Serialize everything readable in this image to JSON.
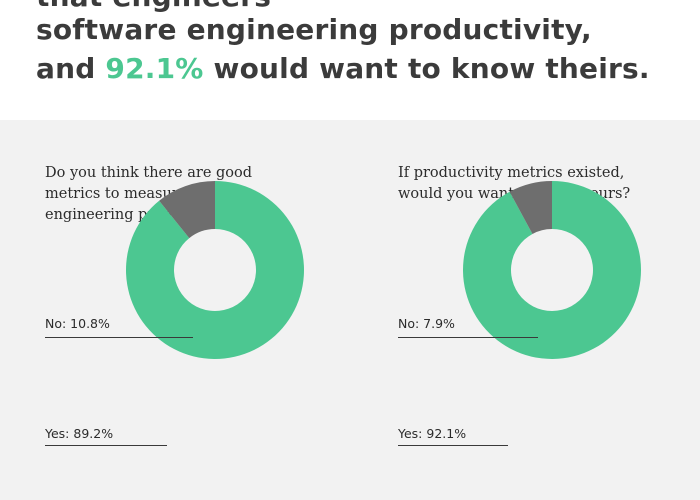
{
  "headline": {
    "line1": "that engineers",
    "line2": "software engineering productivity,",
    "line3_prefix": "and ",
    "line3_highlight": "92.1%",
    "line3_suffix": " would want to know theirs."
  },
  "colors": {
    "yes": "#4cc791",
    "no": "#6e6e6e",
    "accent": "#4cc791",
    "panel_background": "#f2f2f2"
  },
  "chart_data": [
    {
      "type": "pie",
      "title": "Do you think there are good metrics to measure software engineering productivity?",
      "categories": [
        "Yes",
        "No"
      ],
      "values": [
        89.2,
        10.8
      ],
      "labels": [
        "Yes: 89.2%",
        "No: 10.8%"
      ],
      "style": "donut",
      "legend": "none"
    },
    {
      "type": "pie",
      "title": "If productivity metrics existed, would you want to know yours?",
      "categories": [
        "Yes",
        "No"
      ],
      "values": [
        92.1,
        7.9
      ],
      "labels": [
        "Yes: 92.1%",
        "No: 7.9%"
      ],
      "style": "donut",
      "legend": "none"
    }
  ]
}
